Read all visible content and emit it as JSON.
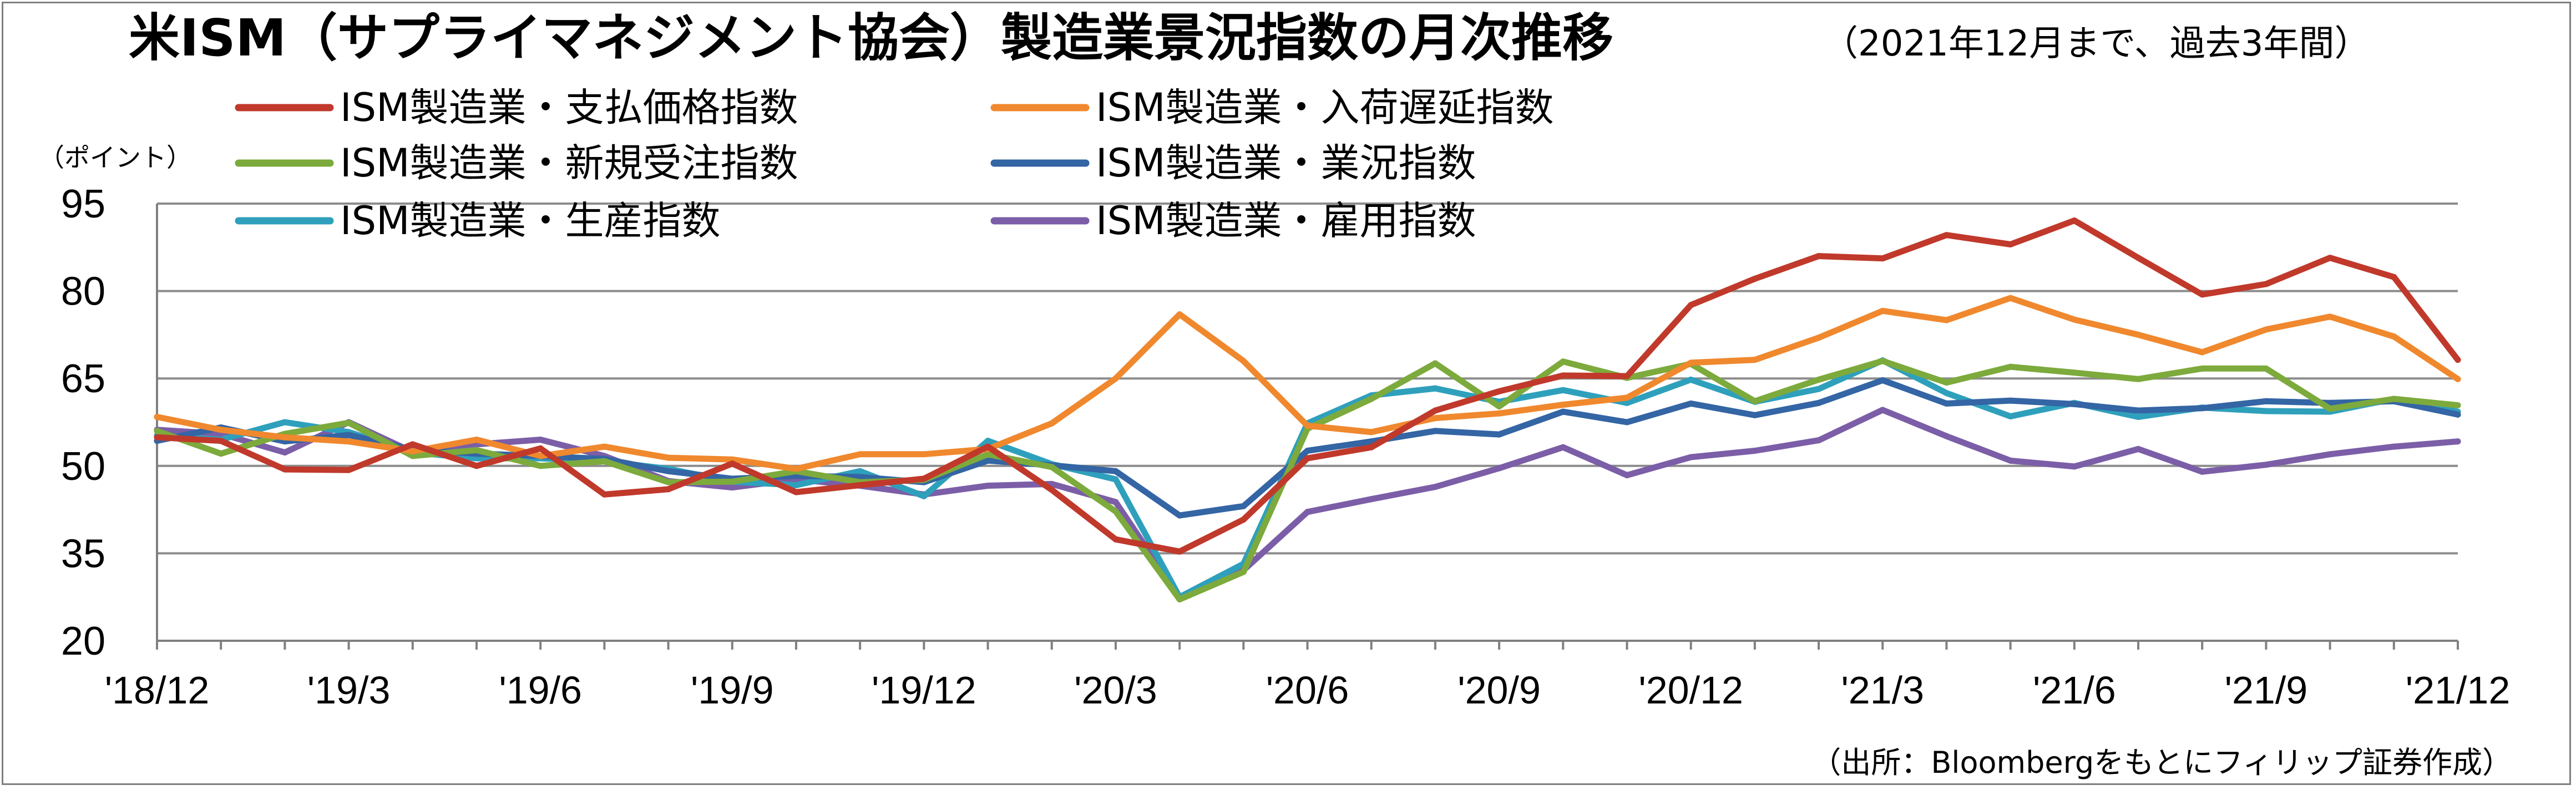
{
  "chart_data": {
    "type": "line",
    "title": "米ISM（サプライマネジメント協会）製造業景況指数の月次推移",
    "subtitle": "（2021年12月まで、過去3年間）",
    "ylabel": "（ポイント）",
    "source": "（出所：Bloombergをもとにフィリップ証券作成）",
    "ylim": [
      20,
      95
    ],
    "yticks": [
      "95",
      "80",
      "65",
      "50",
      "35",
      "20"
    ],
    "grid": true,
    "legend_position": "top-left",
    "x": [
      "2018-12",
      "2019-01",
      "2019-02",
      "2019-03",
      "2019-04",
      "2019-05",
      "2019-06",
      "2019-07",
      "2019-08",
      "2019-09",
      "2019-10",
      "2019-11",
      "2019-12",
      "2020-01",
      "2020-02",
      "2020-03",
      "2020-04",
      "2020-05",
      "2020-06",
      "2020-07",
      "2020-08",
      "2020-09",
      "2020-10",
      "2020-11",
      "2020-12",
      "2021-01",
      "2021-02",
      "2021-03",
      "2021-04",
      "2021-05",
      "2021-06",
      "2021-07",
      "2021-08",
      "2021-09",
      "2021-10",
      "2021-11",
      "2021-12"
    ],
    "xtick_labels": [
      "'18/12",
      "'19/3",
      "'19/6",
      "'19/9",
      "'19/12",
      "'20/3",
      "'20/6",
      "'20/9",
      "'20/12",
      "'21/3",
      "'21/6",
      "'21/9",
      "'21/12"
    ],
    "series": [
      {
        "name": "ISM製造業・支払価格指数",
        "color": "#c0392b",
        "values": [
          54.9,
          54.3,
          49.4,
          49.3,
          53.7,
          50.0,
          53.0,
          45.1,
          46.0,
          50.4,
          45.5,
          46.7,
          47.8,
          53.3,
          45.9,
          37.4,
          35.3,
          40.8,
          51.3,
          53.2,
          59.5,
          62.8,
          65.5,
          65.4,
          77.6,
          82.1,
          86.0,
          85.6,
          89.6,
          88.0,
          92.1,
          85.7,
          79.4,
          81.2,
          85.7,
          82.4,
          68.2
        ]
      },
      {
        "name": "ISM製造業・入荷遅延指数",
        "color": "#f0882e",
        "values": [
          58.4,
          56.2,
          54.9,
          54.2,
          52.5,
          54.5,
          51.7,
          53.3,
          51.4,
          51.1,
          49.5,
          52.0,
          52.0,
          52.9,
          57.3,
          65.0,
          76.0,
          68.0,
          56.9,
          55.8,
          58.2,
          59.0,
          60.5,
          61.7,
          67.7,
          68.2,
          72.0,
          76.6,
          75.0,
          78.8,
          75.1,
          72.5,
          69.5,
          73.4,
          75.6,
          72.2,
          64.9
        ]
      },
      {
        "name": "ISM製造業・新規受注指数",
        "color": "#7daa3c",
        "values": [
          56.0,
          52.1,
          55.5,
          57.4,
          51.7,
          52.7,
          50.0,
          50.8,
          47.2,
          47.3,
          49.1,
          47.2,
          47.6,
          52.0,
          49.8,
          42.2,
          27.1,
          31.8,
          56.4,
          61.5,
          67.6,
          60.2,
          67.9,
          65.1,
          67.5,
          61.1,
          64.8,
          68.0,
          64.3,
          67.0,
          66.0,
          64.9,
          66.7,
          66.7,
          59.8,
          61.5,
          60.4
        ]
      },
      {
        "name": "ISM製造業・業況指数",
        "color": "#3465a4",
        "values": [
          54.3,
          56.6,
          54.2,
          55.3,
          52.8,
          52.1,
          51.7,
          51.2,
          49.1,
          47.8,
          48.3,
          48.1,
          47.2,
          50.9,
          50.1,
          49.1,
          41.5,
          43.1,
          52.6,
          54.2,
          56.0,
          55.4,
          59.3,
          57.5,
          60.7,
          58.7,
          60.8,
          64.7,
          60.7,
          61.2,
          60.6,
          59.5,
          59.9,
          61.1,
          60.8,
          61.1,
          58.8
        ]
      },
      {
        "name": "ISM製造業・生産指数",
        "color": "#2fa0bc",
        "values": [
          55.2,
          54.5,
          57.5,
          55.8,
          52.3,
          51.3,
          51.3,
          50.8,
          49.5,
          47.3,
          46.7,
          49.1,
          44.8,
          54.3,
          50.3,
          47.7,
          27.5,
          33.2,
          57.3,
          62.1,
          63.3,
          61.0,
          63.0,
          60.8,
          64.8,
          61.0,
          63.2,
          68.1,
          62.5,
          58.5,
          60.8,
          58.4,
          60.0,
          59.4,
          59.3,
          61.5,
          59.3
        ]
      },
      {
        "name": "ISM製造業・雇用指数",
        "color": "#7b5ea7",
        "values": [
          56.2,
          55.5,
          52.3,
          57.5,
          52.4,
          53.7,
          54.5,
          51.7,
          47.4,
          46.3,
          47.7,
          46.6,
          45.1,
          46.6,
          46.9,
          43.8,
          27.5,
          32.1,
          42.1,
          44.3,
          46.4,
          49.6,
          53.2,
          48.4,
          51.5,
          52.6,
          54.4,
          59.6,
          55.1,
          50.9,
          49.9,
          52.9,
          49.0,
          50.2,
          52.0,
          53.3,
          54.2
        ]
      }
    ]
  }
}
